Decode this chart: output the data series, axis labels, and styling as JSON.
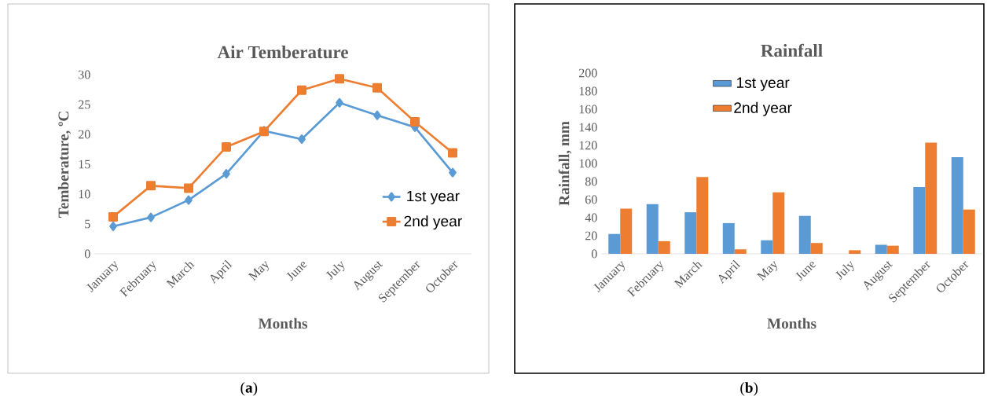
{
  "chart_data": [
    {
      "type": "line",
      "title": "Air Temberature",
      "xlabel": "Months",
      "ylabel": "Temberature, ºC",
      "categories": [
        "January",
        "February",
        "March",
        "April",
        "May",
        "June",
        "July",
        "August",
        "September",
        "October"
      ],
      "series": [
        {
          "name": "1st year",
          "color": "#5b9bd5",
          "marker": "diamond",
          "values": [
            4.6,
            6.1,
            9.0,
            13.4,
            20.6,
            19.2,
            25.3,
            23.2,
            21.2,
            13.6
          ]
        },
        {
          "name": "2nd year",
          "color": "#ed7d31",
          "marker": "square",
          "values": [
            6.2,
            11.4,
            11.0,
            17.9,
            20.5,
            27.4,
            29.3,
            27.8,
            22.1,
            16.9
          ]
        }
      ],
      "ylim": [
        0,
        30
      ],
      "yticks": [
        0,
        5,
        10,
        15,
        20,
        25,
        30
      ],
      "legend": "bottom right",
      "annotations": [
        "(**a**)"
      ]
    },
    {
      "type": "bar",
      "title": "Rainfall",
      "xlabel": "Months",
      "ylabel": "Rainfall, mm",
      "categories": [
        "January",
        "February",
        "March",
        "April",
        "May",
        "June",
        "July",
        "August",
        "September",
        "October"
      ],
      "series": [
        {
          "name": "1st year",
          "color": "#5b9bd5",
          "values": [
            22,
            55,
            46,
            34,
            15,
            42,
            0,
            10,
            74,
            107
          ]
        },
        {
          "name": "2nd year",
          "color": "#ed7d31",
          "values": [
            50,
            14,
            85,
            5,
            68,
            12,
            4,
            9,
            123,
            49
          ]
        }
      ],
      "ylim": [
        0,
        200
      ],
      "yticks": [
        0,
        20,
        40,
        60,
        80,
        100,
        120,
        140,
        160,
        180,
        200
      ],
      "legend": "top",
      "annotations": [
        "(**b**)"
      ]
    }
  ]
}
